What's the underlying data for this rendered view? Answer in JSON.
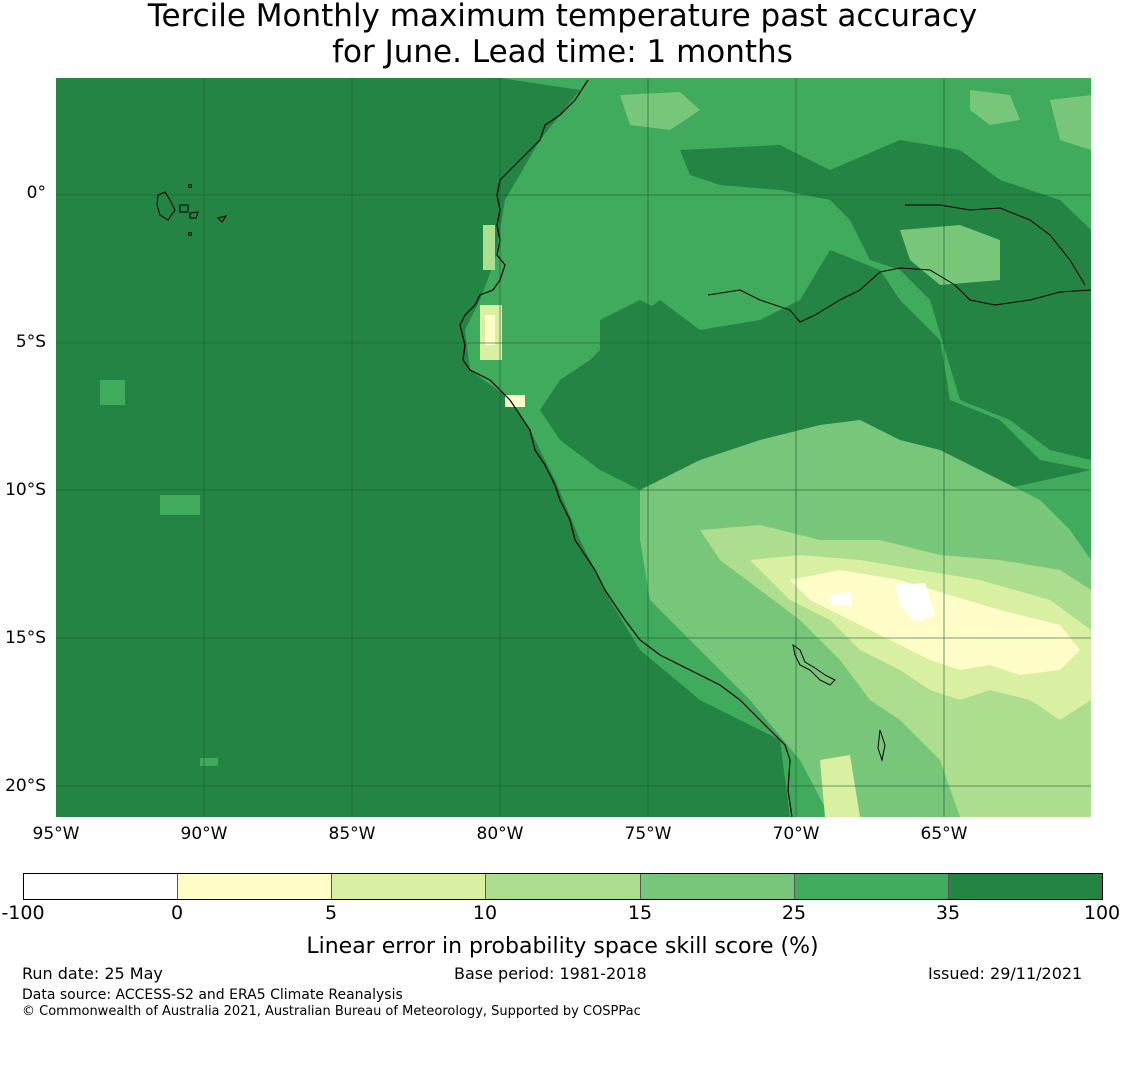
{
  "title_line1": "Tercile Monthly maximum temperature past accuracy",
  "title_line2": "for June. Lead time: 1 months",
  "map": {
    "lat_labels": [
      "0°",
      "5°S",
      "10°S",
      "15°S",
      "20°S"
    ],
    "lon_labels": [
      "95°W",
      "90°W",
      "85°W",
      "80°W",
      "75°W",
      "70°W",
      "65°W"
    ],
    "extent": {
      "lon_min": -95,
      "lon_max": -60,
      "lat_min": -21,
      "lat_max": 4
    },
    "ocean_category": "35-100"
  },
  "colorbar": {
    "label": "Linear error in probability space skill score (%)",
    "ticks": [
      "-100",
      "0",
      "5",
      "10",
      "15",
      "25",
      "35",
      "100"
    ],
    "colors": [
      "#ffffff",
      "#fefdc8",
      "#d9efa2",
      "#addd8e",
      "#78c679",
      "#41ab5d",
      "#238443"
    ]
  },
  "footer": {
    "run_date": "Run date: 25 May",
    "base_period": "Base period: 1981-2018",
    "issued": "Issued: 29/11/2021",
    "data_source": "Data source: ACCESS-S2 and ERA5 Climate Reanalysis",
    "copyright": "© Commonwealth of Australia 2021, Australian Bureau of Meteorology, Supported by COSPPac"
  }
}
